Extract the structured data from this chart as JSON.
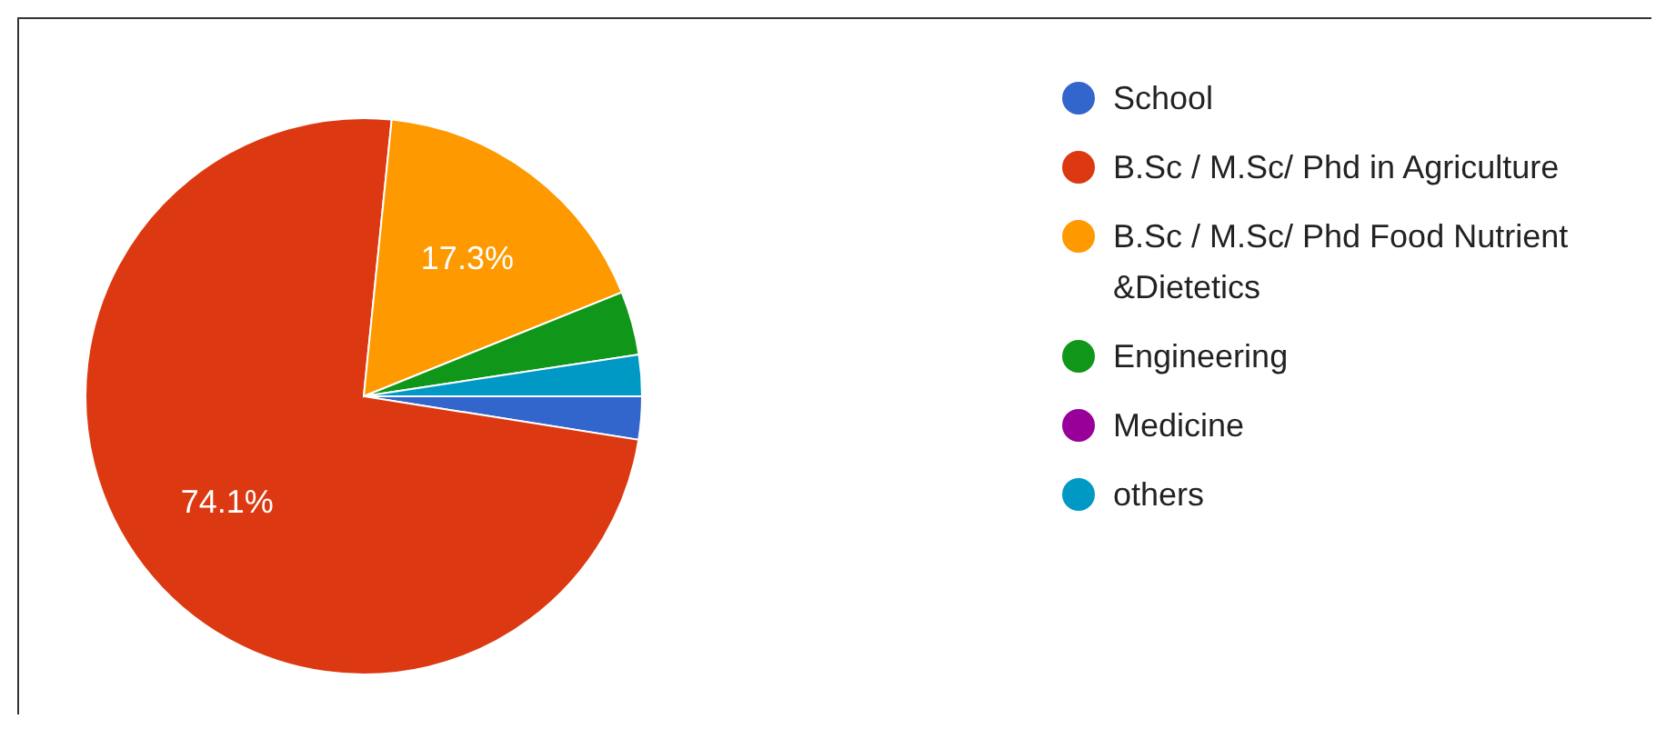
{
  "chart_data": {
    "type": "pie",
    "categories": [
      "School",
      "B.Sc / M.Sc/ Phd in Agriculture",
      "B.Sc / M.Sc/ Phd Food Nutrient &Dietetics",
      "Engineering",
      "Medicine",
      "others"
    ],
    "values": [
      2.5,
      74.1,
      17.3,
      3.7,
      0,
      2.4
    ],
    "colors": [
      "#3366cc",
      "#dc3912",
      "#ff9900",
      "#109618",
      "#990099",
      "#0099c6"
    ],
    "value_labels": [
      null,
      "74.1%",
      "17.3%",
      null,
      null,
      null
    ],
    "legend": "right"
  }
}
